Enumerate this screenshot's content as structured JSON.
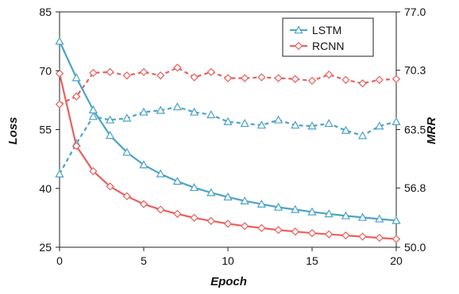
{
  "chart_data": {
    "type": "line",
    "xlabel": "Epoch",
    "ylabel_left": "Loss",
    "ylabel_right": "MRR",
    "xlim": [
      0,
      20
    ],
    "ylim_left": [
      25,
      85
    ],
    "ylim_right": [
      50.0,
      77.0
    ],
    "x_ticks": [
      "0",
      "5",
      "10",
      "15",
      "20"
    ],
    "y_left_ticks": [
      "25",
      "40",
      "55",
      "70",
      "85"
    ],
    "y_right_ticks": [
      "50.0",
      "56.8",
      "63.5",
      "70.3",
      "77.0"
    ],
    "legend_position": "top-right",
    "legend": [
      {
        "name": "LSTM",
        "color": "#4aa3c8",
        "marker": "triangle"
      },
      {
        "name": "RCNN",
        "color": "#e8605e",
        "marker": "diamond"
      }
    ],
    "x": [
      0,
      1,
      2,
      3,
      4,
      5,
      6,
      7,
      8,
      9,
      10,
      11,
      12,
      13,
      14,
      15,
      16,
      17,
      18,
      19,
      20
    ],
    "series": [
      {
        "name": "LSTM",
        "metric": "Loss",
        "axis": "left",
        "style": "solid",
        "color": "#4aa3c8",
        "marker": "triangle",
        "values": [
          77.5,
          68.2,
          60.0,
          53.5,
          49.2,
          46.0,
          43.7,
          41.8,
          40.2,
          38.9,
          37.8,
          36.8,
          36.0,
          35.2,
          34.6,
          34.0,
          33.5,
          33.0,
          32.6,
          32.2,
          31.8
        ]
      },
      {
        "name": "RCNN",
        "metric": "Loss",
        "axis": "left",
        "style": "solid",
        "color": "#e8605e",
        "marker": "diamond",
        "values": [
          69.3,
          50.8,
          44.4,
          40.5,
          38.0,
          36.0,
          34.6,
          33.5,
          32.5,
          31.7,
          31.0,
          30.4,
          29.9,
          29.4,
          29.0,
          28.6,
          28.3,
          28.0,
          27.7,
          27.4,
          27.1
        ]
      },
      {
        "name": "LSTM",
        "metric": "MRR",
        "axis": "right",
        "style": "dashed",
        "color": "#4aa3c8",
        "marker": "triangle",
        "values": [
          58.4,
          61.9,
          65.0,
          64.6,
          64.8,
          65.5,
          65.7,
          66.1,
          65.5,
          65.2,
          64.4,
          64.2,
          64.0,
          64.6,
          64.0,
          63.9,
          64.2,
          63.4,
          62.8,
          63.9,
          64.4
        ]
      },
      {
        "name": "RCNN",
        "metric": "MRR",
        "axis": "right",
        "style": "dashed",
        "color": "#e8605e",
        "marker": "diamond",
        "values": [
          66.4,
          67.3,
          70.0,
          70.1,
          69.7,
          70.1,
          69.7,
          70.6,
          69.5,
          70.1,
          69.4,
          69.4,
          69.5,
          69.4,
          69.3,
          69.1,
          69.8,
          69.2,
          68.8,
          69.2,
          69.3
        ]
      }
    ]
  }
}
